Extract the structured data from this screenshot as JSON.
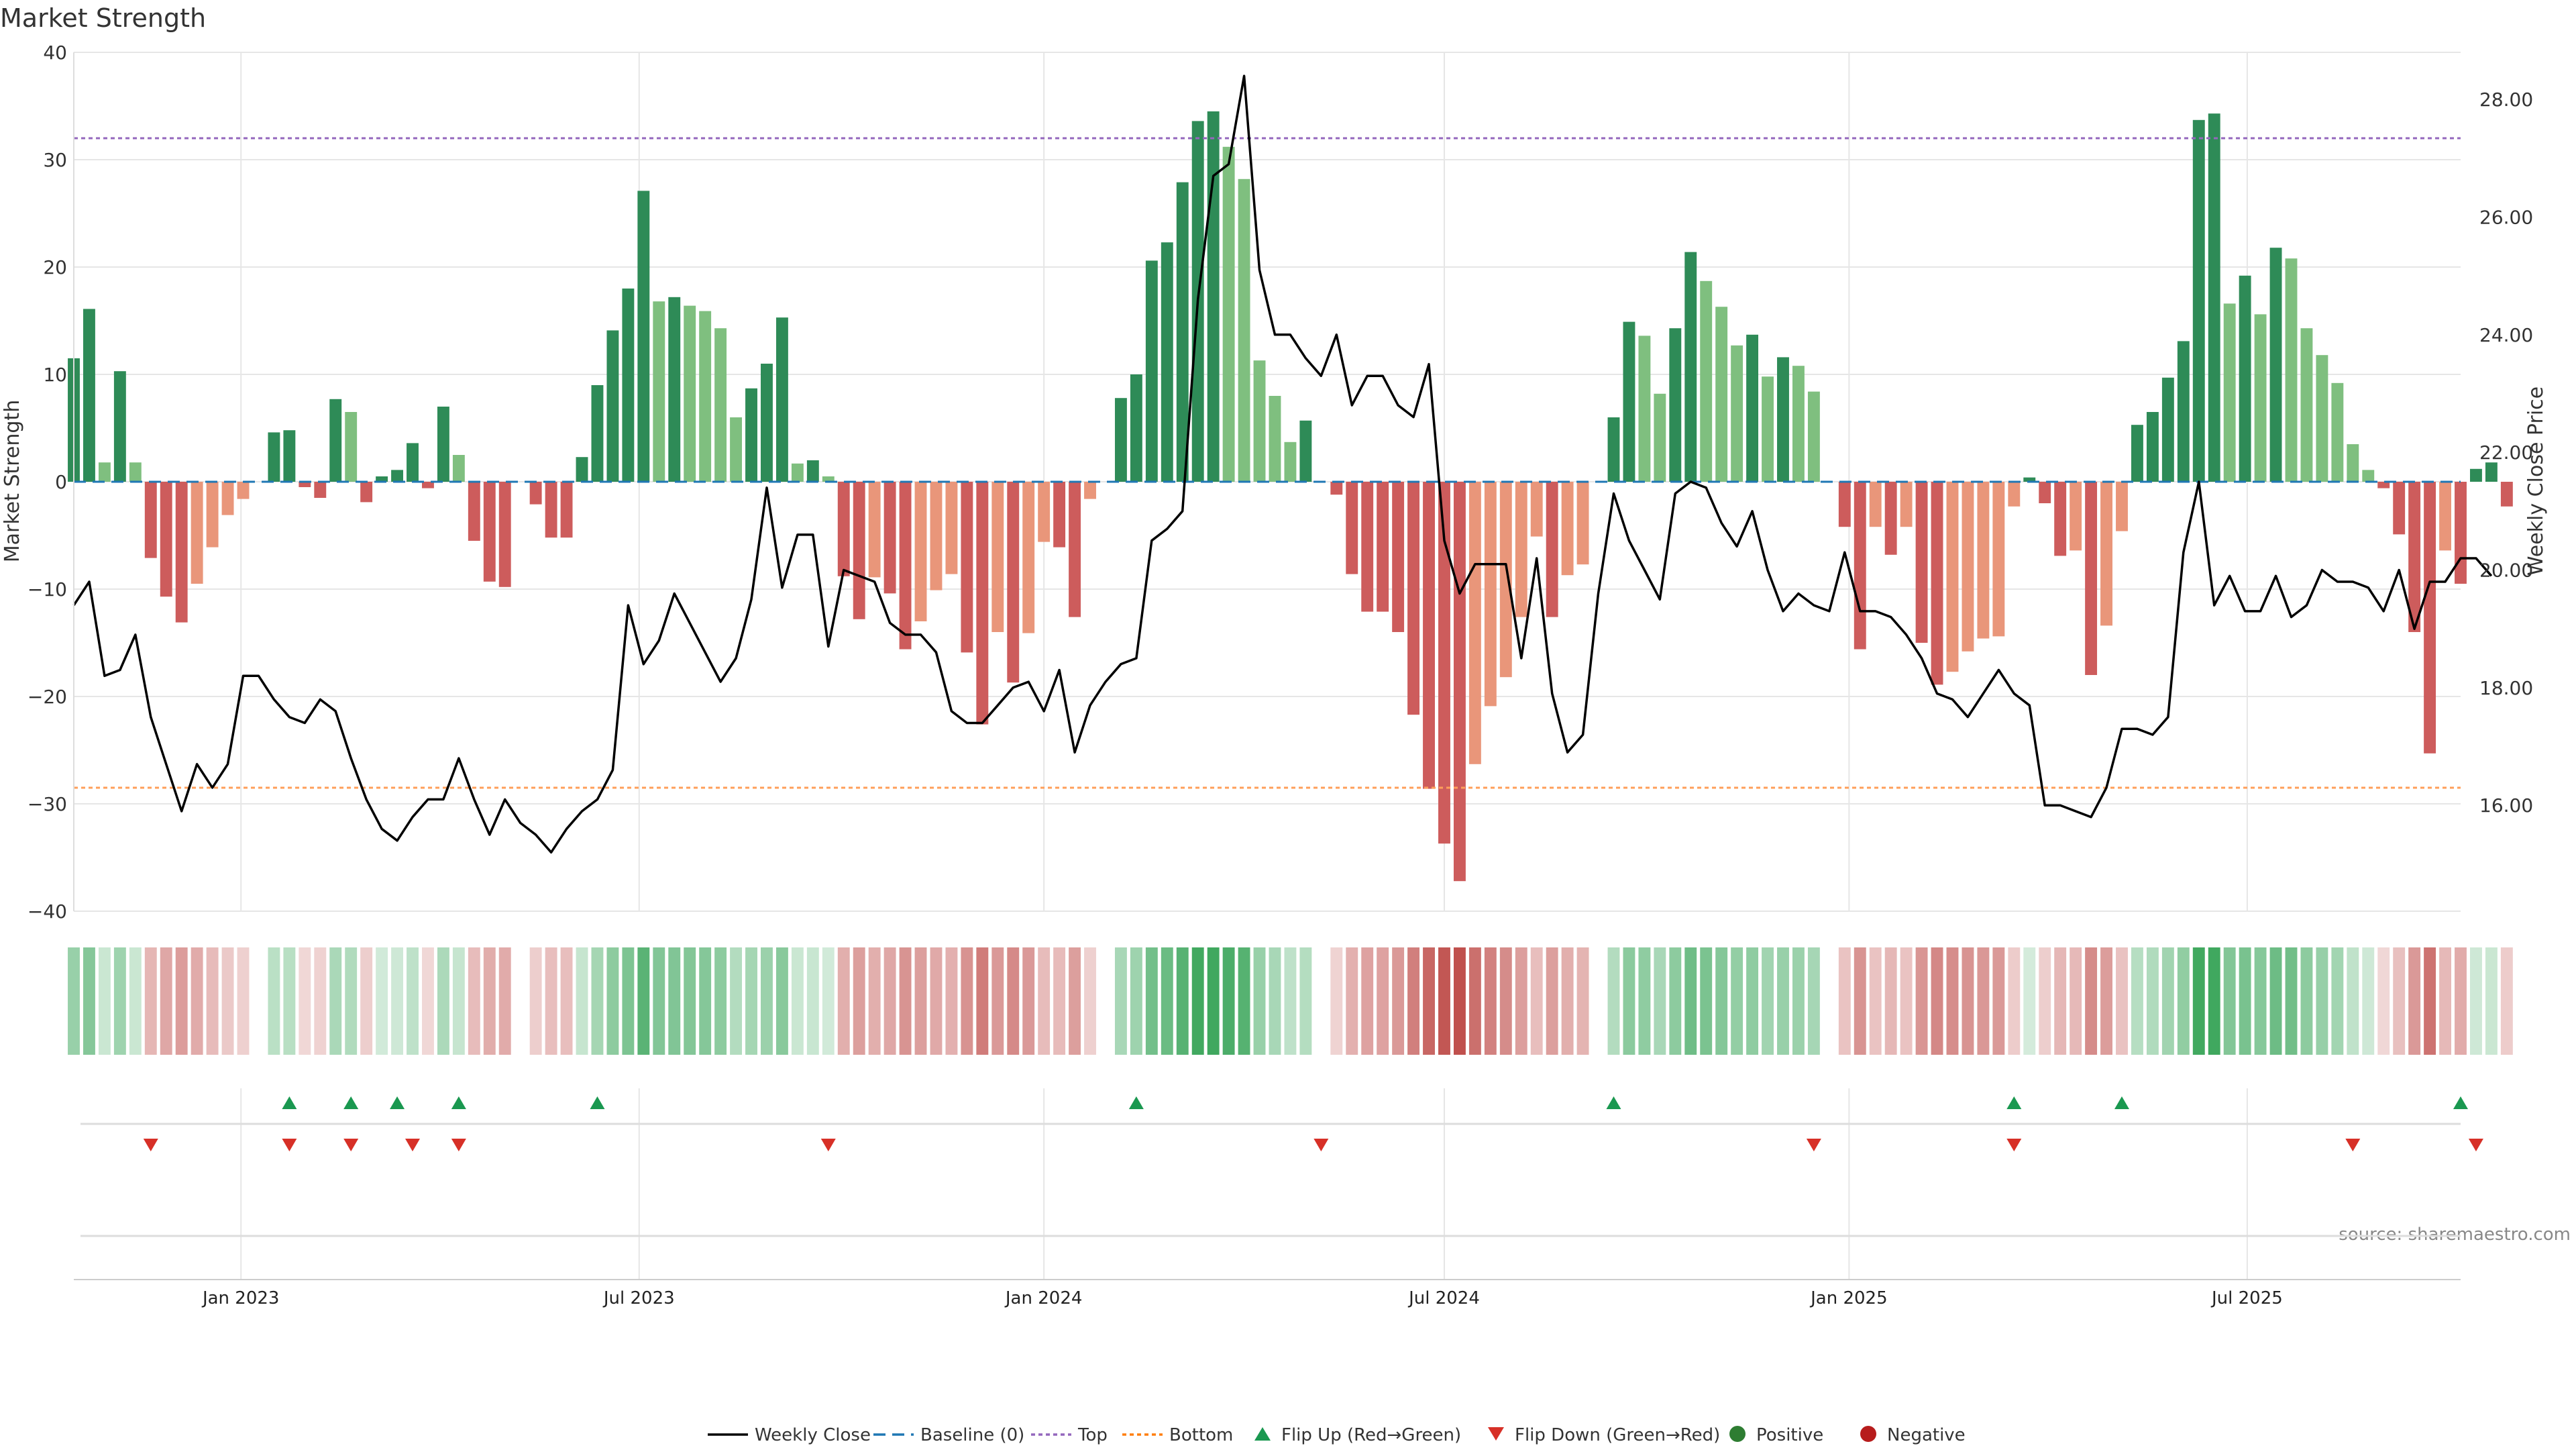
{
  "chart_data": {
    "type": "bar",
    "title": "Market Strength",
    "ylabel_left": "Market Strength",
    "ylabel_right": "Weekly Close Price",
    "ylim_left": [
      -40,
      40
    ],
    "yticks_left": [
      40,
      30,
      20,
      10,
      0,
      -10,
      -20,
      -30,
      -40
    ],
    "ylim_right": [
      14.2,
      28.8
    ],
    "yticks_right": [
      "28.00",
      "26.00",
      "24.00",
      "22.00",
      "20.00",
      "18.00",
      "16.00"
    ],
    "top_level": 32,
    "bottom_level": -28.5,
    "x_start": "2022-10-17",
    "x_end": "2025-10-06",
    "xticks": [
      {
        "date": "2023-01-01",
        "label": "Jan 2023"
      },
      {
        "date": "2023-07-01",
        "label": "Jul 2023"
      },
      {
        "date": "2024-01-01",
        "label": "Jan 2024"
      },
      {
        "date": "2024-07-01",
        "label": "Jul 2024"
      },
      {
        "date": "2025-01-01",
        "label": "Jan 2025"
      },
      {
        "date": "2025-07-01",
        "label": "Jul 2025"
      }
    ],
    "week_start": "2022-10-17",
    "strength": [
      11.5,
      16.1,
      1.8,
      10.3,
      1.8,
      -7.1,
      -10.7,
      -13.1,
      -9.5,
      -6.1,
      -3.1,
      -1.6,
      0,
      4.6,
      4.8,
      -0.5,
      -1.5,
      7.7,
      6.5,
      -1.9,
      0.5,
      1.1,
      3.6,
      -0.6,
      7,
      2.5,
      -5.5,
      -9.3,
      -9.8,
      0,
      -2.1,
      -5.2,
      -5.2,
      2.3,
      9,
      14.1,
      18,
      27.1,
      16.8,
      17.2,
      16.4,
      15.9,
      14.3,
      6,
      8.7,
      11,
      15.3,
      1.7,
      2,
      0.5,
      -8.8,
      -12.8,
      -8.9,
      -10.4,
      -15.6,
      -13,
      -10.1,
      -8.6,
      -15.9,
      -22.6,
      -14,
      -18.7,
      -14.1,
      -5.6,
      -6.1,
      -12.6,
      -1.6,
      0,
      7.8,
      10,
      20.6,
      22.3,
      27.9,
      33.6,
      34.5,
      31.2,
      28.2,
      11.3,
      8,
      3.7,
      5.7,
      0,
      -1.2,
      -8.6,
      -12.1,
      -12.1,
      -14,
      -21.7,
      -28.6,
      -33.7,
      -37.2,
      -26.3,
      -20.9,
      -18.2,
      -12.6,
      -5.1,
      -12.6,
      -8.7,
      -7.7,
      0,
      6,
      14.9,
      13.6,
      8.2,
      14.3,
      21.4,
      18.7,
      16.3,
      12.7,
      13.7,
      9.8,
      11.6,
      10.8,
      8.4,
      0,
      -4.2,
      -15.6,
      -4.2,
      -6.8,
      -4.2,
      -15,
      -18.9,
      -17.7,
      -15.8,
      -14.6,
      -14.4,
      -2.3,
      0.4,
      -2,
      -6.9,
      -6.4,
      -18,
      -13.4,
      -4.6,
      5.3,
      6.5,
      9.7,
      13.1,
      33.7,
      34.3,
      16.6,
      19.2,
      15.6,
      21.8,
      20.8,
      14.3,
      11.8,
      9.2,
      3.5,
      1.1,
      -0.6,
      -4.9,
      -14,
      -25.3,
      -6.4,
      -9.5,
      1.2,
      1.8,
      -2.3
    ],
    "close": [
      19.4,
      19.8,
      18.2,
      18.3,
      18.9,
      17.5,
      16.7,
      15.9,
      16.7,
      16.3,
      16.7,
      18.2,
      18.2,
      17.8,
      17.5,
      17.4,
      17.8,
      17.6,
      16.8,
      16.1,
      15.6,
      15.4,
      15.8,
      16.1,
      16.1,
      16.8,
      16.1,
      15.5,
      16.1,
      15.7,
      15.5,
      15.2,
      15.6,
      15.9,
      16.1,
      16.6,
      19.4,
      18.4,
      18.8,
      19.6,
      19.1,
      18.6,
      18.1,
      18.5,
      19.5,
      21.4,
      19.7,
      20.6,
      20.6,
      18.7,
      20,
      19.9,
      19.8,
      19.1,
      18.9,
      18.9,
      18.6,
      17.6,
      17.4,
      17.4,
      17.7,
      18,
      18.1,
      17.6,
      18.3,
      16.9,
      17.7,
      18.1,
      18.4,
      18.5,
      20.5,
      20.7,
      21,
      24.6,
      26.7,
      26.9,
      28.4,
      25.1,
      24,
      24,
      23.6,
      23.3,
      24,
      22.8,
      23.3,
      23.3,
      22.8,
      22.6,
      23.5,
      20.5,
      19.6,
      20.1,
      20.1,
      20.1,
      18.5,
      20.2,
      17.9,
      16.9,
      17.2,
      19.6,
      21.3,
      20.5,
      20,
      19.5,
      21.3,
      21.5,
      21.4,
      20.8,
      20.4,
      21,
      20,
      19.3,
      19.6,
      19.4,
      19.3,
      20.3,
      19.3,
      19.3,
      19.2,
      18.9,
      18.5,
      17.9,
      17.8,
      17.5,
      17.9,
      18.3,
      17.9,
      17.7,
      16,
      16,
      15.9,
      15.8,
      16.3,
      17.3,
      17.3,
      17.2,
      17.5,
      20.3,
      21.5,
      19.4,
      19.9,
      19.3,
      19.3,
      19.9,
      19.2,
      19.4,
      20,
      19.8,
      19.8,
      19.7,
      19.3,
      20,
      19,
      19.8,
      19.8,
      20.2,
      20.2,
      19.9
    ],
    "flip_up_weeks": [
      14,
      18,
      21,
      25,
      34,
      69,
      100,
      126,
      133,
      155
    ],
    "flip_down_weeks": [
      5,
      14,
      18,
      22,
      25,
      49,
      81,
      113,
      126,
      148,
      156
    ],
    "series": [
      {
        "name": "Weekly Close",
        "color": "#000000"
      },
      {
        "name": "Baseline (0)",
        "color": "#1f77b4"
      },
      {
        "name": "Top",
        "color": "#9467bd"
      },
      {
        "name": "Bottom",
        "color": "#ff7f0e"
      },
      {
        "name": "Flip Up (Red→Green)",
        "color": "#1a9850"
      },
      {
        "name": "Flip Down (Green→Red)",
        "color": "#d73027"
      },
      {
        "name": "Positive",
        "color": "#2e7d32"
      },
      {
        "name": "Negative",
        "color": "#b71c1c"
      }
    ],
    "grid": true,
    "legend_position": "bottom-center",
    "source": "source: sharemaestro.com"
  },
  "colors": {
    "positive_rising": "#2e8b57",
    "positive_falling": "#7fbf7f",
    "negative_falling": "#cd5c5c",
    "negative_rising": "#e9967a",
    "line": "#000000",
    "top": "#9467bd",
    "bottom": "#ff9f5a",
    "baseline": "#1f77b4",
    "grid": "#e6e6e6"
  }
}
